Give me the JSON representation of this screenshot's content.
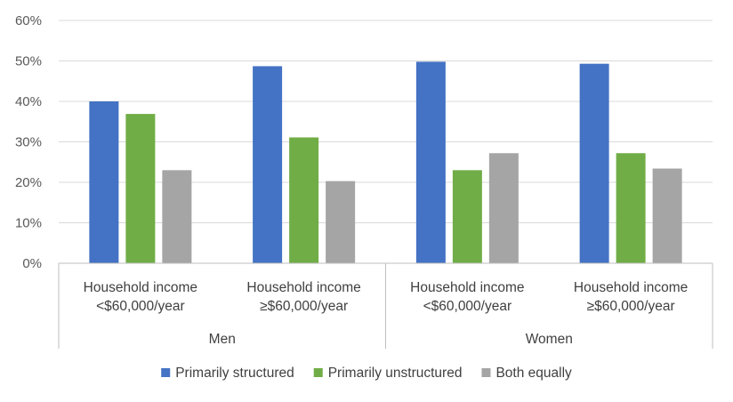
{
  "chart_data": {
    "type": "bar",
    "groups": [
      {
        "label": "Men",
        "categories": [
          "Household income <$60,000/year",
          "Household income ≥$60,000/year"
        ]
      },
      {
        "label": "Women",
        "categories": [
          "Household income <$60,000/year",
          "Household income ≥$60,000/year"
        ]
      }
    ],
    "category_lines": [
      [
        "Household income",
        "<$60,000/year"
      ],
      [
        "Household income",
        "≥$60,000/year"
      ],
      [
        "Household income",
        "<$60,000/year"
      ],
      [
        "Household income",
        "≥$60,000/year"
      ]
    ],
    "series": [
      {
        "name": "Primarily structured",
        "color": "#4472C4",
        "values": [
          40,
          48.7,
          49.8,
          49.3
        ]
      },
      {
        "name": "Primarily unstructured",
        "color": "#70AD47",
        "values": [
          36.9,
          31.1,
          23,
          27.2
        ]
      },
      {
        "name": "Both equally",
        "color": "#A5A5A5",
        "values": [
          23,
          20.3,
          27.2,
          23.4
        ]
      }
    ],
    "y_ticks": [
      "0%",
      "10%",
      "20%",
      "30%",
      "40%",
      "50%",
      "60%"
    ],
    "ylim": [
      0,
      60
    ],
    "grid": true,
    "legend_position": "bottom"
  }
}
